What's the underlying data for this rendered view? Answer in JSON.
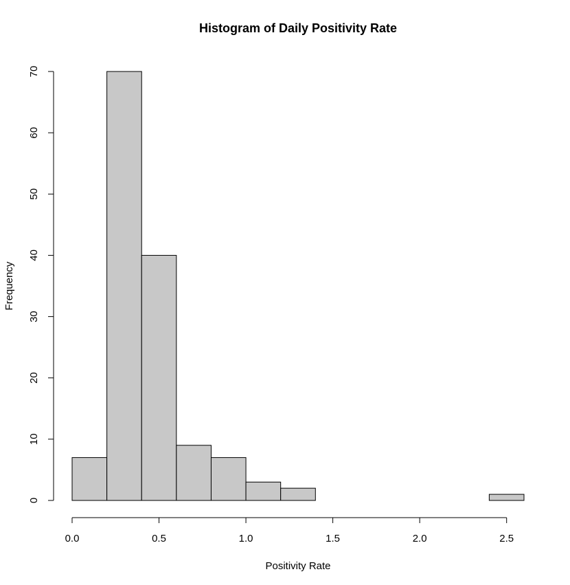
{
  "chart_data": {
    "type": "bar",
    "title": "Histogram of Daily Positivity Rate",
    "xlabel": "Positivity Rate",
    "ylabel": "Frequency",
    "bin_edges": [
      0.0,
      0.2,
      0.4,
      0.6,
      0.8,
      1.0,
      1.2,
      1.4,
      1.6,
      1.8,
      2.0,
      2.2,
      2.4,
      2.6
    ],
    "values": [
      7,
      70,
      40,
      9,
      7,
      3,
      2,
      0,
      0,
      0,
      0,
      0,
      1
    ],
    "xlim": [
      0.0,
      2.6
    ],
    "ylim": [
      0,
      70
    ],
    "x_ticks": [
      0.0,
      0.5,
      1.0,
      1.5,
      2.0,
      2.5
    ],
    "x_tick_labels": [
      "0.0",
      "0.5",
      "1.0",
      "1.5",
      "2.0",
      "2.5"
    ],
    "y_ticks": [
      0,
      10,
      20,
      30,
      40,
      50,
      60,
      70
    ],
    "y_tick_labels": [
      "0",
      "10",
      "20",
      "30",
      "40",
      "50",
      "60",
      "70"
    ],
    "bar_color": "#c8c8c8",
    "grid": false
  }
}
